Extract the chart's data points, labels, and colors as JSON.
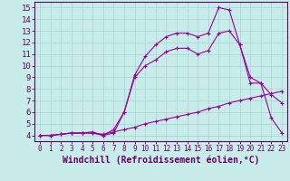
{
  "background_color": "#c8ecea",
  "grid_color": "#add8d8",
  "line_color": "#990099",
  "marker": "+",
  "xlim": [
    -0.5,
    23.5
  ],
  "ylim": [
    3.5,
    15.5
  ],
  "xticks": [
    0,
    1,
    2,
    3,
    4,
    5,
    6,
    7,
    8,
    9,
    10,
    11,
    12,
    13,
    14,
    15,
    16,
    17,
    18,
    19,
    20,
    21,
    22,
    23
  ],
  "yticks": [
    4,
    5,
    6,
    7,
    8,
    9,
    10,
    11,
    12,
    13,
    14,
    15
  ],
  "xlabel": "Windchill (Refroidissement éolien,°C)",
  "series": [
    {
      "x": [
        0,
        1,
        2,
        3,
        4,
        5,
        6,
        7,
        8,
        9,
        10,
        11,
        12,
        13,
        14,
        15,
        16,
        17,
        18,
        19,
        20,
        21,
        22,
        23
      ],
      "y": [
        4,
        4,
        4.1,
        4.2,
        4.2,
        4.2,
        4.1,
        4.3,
        4.5,
        4.7,
        5.0,
        5.2,
        5.4,
        5.6,
        5.8,
        6.0,
        6.3,
        6.5,
        6.8,
        7.0,
        7.2,
        7.4,
        7.6,
        7.8
      ]
    },
    {
      "x": [
        0,
        1,
        2,
        3,
        4,
        5,
        6,
        7,
        8,
        9,
        10,
        11,
        12,
        13,
        14,
        15,
        16,
        17,
        18,
        19,
        20,
        21,
        22,
        23
      ],
      "y": [
        4,
        4,
        4.1,
        4.2,
        4.2,
        4.3,
        4.0,
        4.2,
        6.0,
        9.0,
        10.0,
        10.5,
        11.2,
        11.5,
        11.5,
        11.0,
        11.3,
        12.8,
        13.0,
        11.8,
        8.5,
        8.5,
        7.5,
        6.8
      ]
    },
    {
      "x": [
        0,
        1,
        2,
        3,
        4,
        5,
        6,
        7,
        8,
        9,
        10,
        11,
        12,
        13,
        14,
        15,
        16,
        17,
        18,
        19,
        20,
        21,
        22,
        23
      ],
      "y": [
        4,
        4,
        4.1,
        4.2,
        4.2,
        4.2,
        4.0,
        4.5,
        6.0,
        9.2,
        10.8,
        11.8,
        12.5,
        12.8,
        12.8,
        12.5,
        12.8,
        15.0,
        14.8,
        11.8,
        9.0,
        8.5,
        5.5,
        4.2
      ]
    }
  ],
  "tick_color": "#660066",
  "spine_color": "#660066",
  "xlabel_color": "#660066",
  "xlabel_fontsize": 7,
  "xtick_fontsize": 5.5,
  "ytick_fontsize": 6.5
}
